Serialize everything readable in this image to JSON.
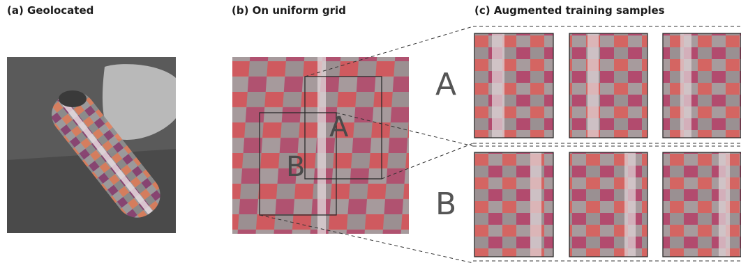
{
  "panels": {
    "a": {
      "title": "(a) Geolocated"
    },
    "b": {
      "title": "(b) On uniform grid",
      "box_a_label": "A",
      "box_b_label": "B"
    },
    "c": {
      "title": "(c) Augmented training samples",
      "row_a_label": "A",
      "row_b_label": "B"
    }
  },
  "colors": {
    "background_gray": "#5a5a5a",
    "checker_dark": "#6e3a6e",
    "checker_light": "#e0815f",
    "checker_gray": "#8f8f8f",
    "stripe": "#d8c8cc",
    "outline": "#2a2a2a"
  }
}
